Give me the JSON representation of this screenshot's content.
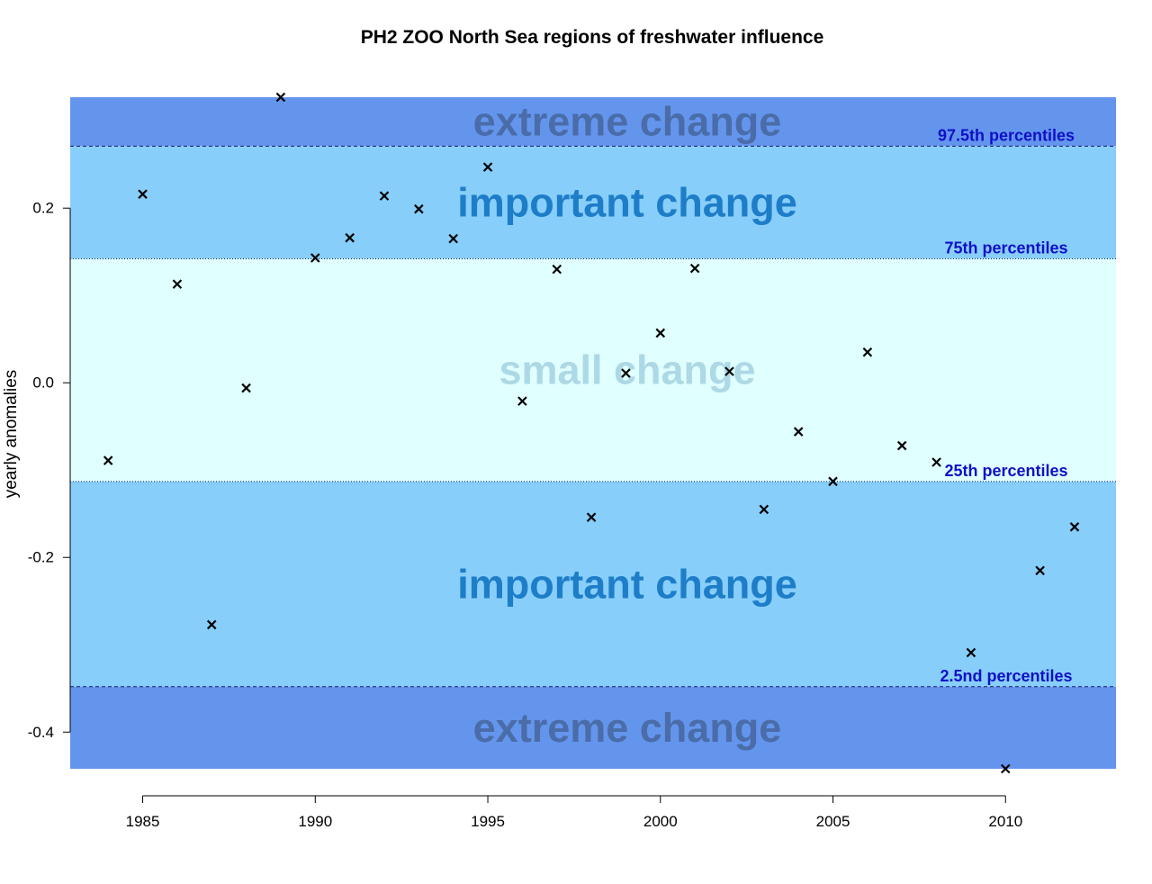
{
  "chart_data": {
    "type": "scatter",
    "title": "PH2 ZOO North Sea regions of freshwater influence",
    "xlabel": "",
    "ylabel": "yearly anomalies",
    "xlim": [
      1982.9,
      2013.2
    ],
    "ylim": [
      -0.442,
      0.327
    ],
    "x_ticks": [
      1985,
      1990,
      1995,
      2000,
      2005,
      2010
    ],
    "x_tick_labels": [
      "1985",
      "1990",
      "1995",
      "2000",
      "2005",
      "2010"
    ],
    "y_ticks": [
      0.2,
      0.0,
      -0.2,
      -0.4
    ],
    "y_tick_labels": [
      "0.2",
      "0.0",
      "-0.2",
      "-0.4"
    ],
    "percentiles": [
      {
        "name": "97.5th percentiles",
        "value": 0.271,
        "line": "dashed"
      },
      {
        "name": "75th percentiles",
        "value": 0.142,
        "line": "dotted"
      },
      {
        "name": "25th percentiles",
        "value": -0.113,
        "line": "dotted"
      },
      {
        "name": "2.5nd percentiles",
        "value": -0.348,
        "line": "dashed"
      }
    ],
    "bands": [
      {
        "label": "extreme change",
        "from": 0.271,
        "to": 0.327,
        "color": "#6495ED",
        "text_color": "#4A6CA8"
      },
      {
        "label": "important change",
        "from": 0.142,
        "to": 0.271,
        "color": "#87CEFA",
        "text_color": "#1E7DC8"
      },
      {
        "label": "small change",
        "from": -0.113,
        "to": 0.142,
        "color": "#E0FFFF",
        "text_color": "#ADD8E6"
      },
      {
        "label": "important change",
        "from": -0.348,
        "to": -0.113,
        "color": "#87CEFA",
        "text_color": "#1E7DC8"
      },
      {
        "label": "extreme change",
        "from": -0.442,
        "to": -0.348,
        "color": "#6495ED",
        "text_color": "#4A6CA8"
      }
    ],
    "series": [
      {
        "name": "yearly anomalies",
        "marker": "x",
        "color": "#000000",
        "x": [
          1984,
          1985,
          1986,
          1987,
          1988,
          1989,
          1990,
          1991,
          1992,
          1993,
          1994,
          1995,
          1996,
          1997,
          1998,
          1999,
          2000,
          2001,
          2002,
          2003,
          2004,
          2005,
          2006,
          2007,
          2008,
          2009,
          2010,
          2011,
          2012
        ],
        "y": [
          -0.089,
          0.216,
          0.113,
          -0.277,
          -0.006,
          0.327,
          0.143,
          0.166,
          0.214,
          0.199,
          0.165,
          0.247,
          -0.021,
          0.13,
          -0.154,
          0.011,
          0.057,
          0.131,
          0.013,
          -0.145,
          -0.056,
          -0.113,
          0.035,
          -0.072,
          -0.091,
          -0.309,
          -0.442,
          -0.215,
          -0.165
        ]
      }
    ]
  }
}
